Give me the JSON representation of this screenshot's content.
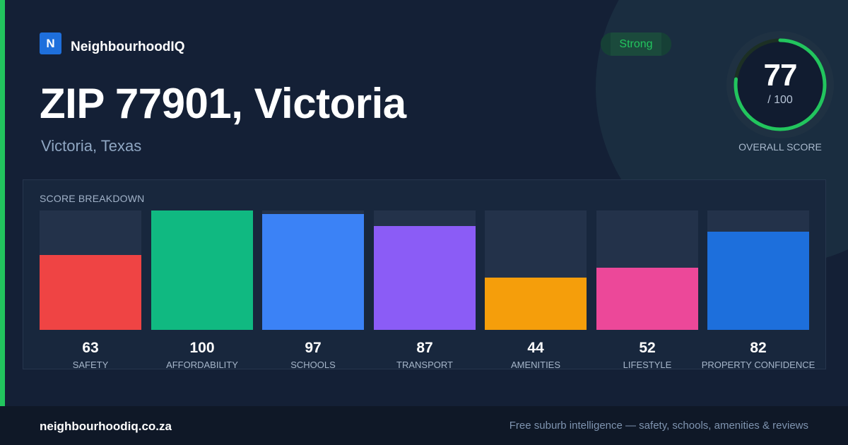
{
  "brand": {
    "logo_letter": "N",
    "name": "NeighbourhoodIQ"
  },
  "badge": {
    "label": "Strong"
  },
  "header": {
    "title": "ZIP 77901, Victoria",
    "subtitle": "Victoria, Texas"
  },
  "overall": {
    "score": "77",
    "max_label": "/ 100",
    "caption": "OVERALL SCORE",
    "fraction": 0.77,
    "ring_color": "#22c55e"
  },
  "breakdown": {
    "title": "SCORE BREAKDOWN",
    "max": 100,
    "items": [
      {
        "value": "63",
        "label": "SAFETY",
        "score": 63,
        "color": "#ef4444"
      },
      {
        "value": "100",
        "label": "AFFORDABILITY",
        "score": 100,
        "color": "#10b981"
      },
      {
        "value": "97",
        "label": "SCHOOLS",
        "score": 97,
        "color": "#3b82f6"
      },
      {
        "value": "87",
        "label": "TRANSPORT",
        "score": 87,
        "color": "#8b5cf6"
      },
      {
        "value": "44",
        "label": "AMENITIES",
        "score": 44,
        "color": "#f59e0b"
      },
      {
        "value": "52",
        "label": "LIFESTYLE",
        "score": 52,
        "color": "#ec4899"
      },
      {
        "value": "82",
        "label": "PROPERTY CONFIDENCE",
        "score": 82,
        "color": "#1d6fdc"
      }
    ]
  },
  "footer": {
    "domain": "neighbourhoodiq.co.za",
    "tagline": "Free suburb intelligence — safety, schools, amenities & reviews"
  }
}
